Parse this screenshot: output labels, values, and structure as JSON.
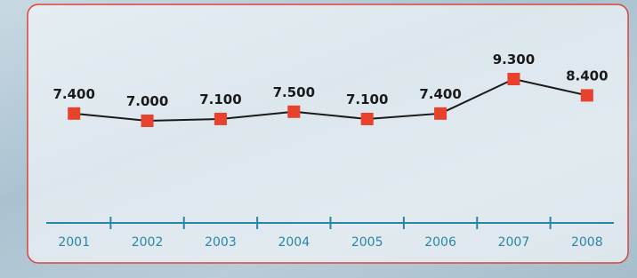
{
  "chart_data": {
    "type": "line",
    "categories": [
      "2001",
      "2002",
      "2003",
      "2004",
      "2005",
      "2006",
      "2007",
      "2008"
    ],
    "values": [
      7.4,
      7.0,
      7.1,
      7.5,
      7.1,
      7.4,
      9.3,
      8.4
    ],
    "value_labels": [
      "7.400",
      "7.000",
      "7.100",
      "7.500",
      "7.100",
      "7.400",
      "9.300",
      "8.400"
    ],
    "color": "#e8412c",
    "line_color": "#1a1a1a"
  }
}
